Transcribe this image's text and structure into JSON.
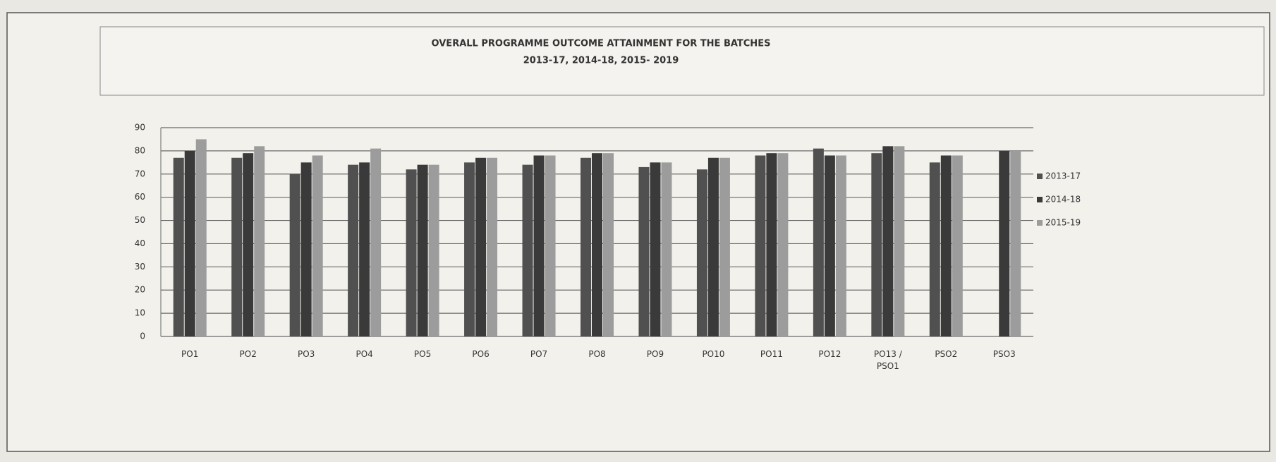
{
  "chart_data": {
    "type": "bar",
    "title": "OVERALL PROGRAMME OUTCOME ATTAINMENT FOR THE BATCHES",
    "subtitle": "2013-17, 2014-18, 2015- 2019",
    "categories": [
      "PO1",
      "PO2",
      "PO3",
      "PO4",
      "PO5",
      "PO6",
      "PO7",
      "PO8",
      "PO9",
      "PO10",
      "PO11",
      "PO12",
      "PO13 / PSO1",
      "PSO2",
      "PSO3"
    ],
    "series": [
      {
        "name": "2013-17",
        "color": "#505050",
        "values": [
          77,
          77,
          70,
          74,
          72,
          75,
          74,
          77,
          73,
          72,
          78,
          81,
          79,
          75,
          null
        ]
      },
      {
        "name": "2014-18",
        "color": "#3a3a3a",
        "values": [
          80,
          79,
          75,
          75,
          74,
          77,
          78,
          79,
          75,
          77,
          79,
          78,
          82,
          78,
          80
        ]
      },
      {
        "name": "2015-19",
        "color": "#9c9c9c",
        "values": [
          85,
          82,
          78,
          81,
          74,
          77,
          78,
          79,
          75,
          77,
          79,
          78,
          82,
          78,
          80
        ]
      }
    ],
    "ylim": [
      0,
      90
    ],
    "yticks": [
      0,
      10,
      20,
      30,
      40,
      50,
      60,
      70,
      80,
      90
    ],
    "grid": true,
    "legend": "right"
  }
}
